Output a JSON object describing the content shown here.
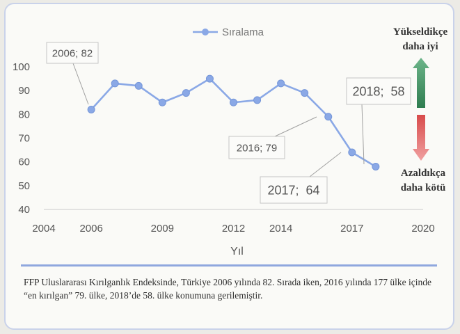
{
  "chart_data": {
    "type": "line",
    "title": "",
    "xlabel": "Yıl",
    "ylabel": "",
    "xlim": [
      2004,
      2020
    ],
    "ylim": [
      40,
      100
    ],
    "x_ticks": [
      "2004",
      "2006",
      "2009",
      "2012",
      "2014",
      "2017",
      "2020"
    ],
    "y_ticks": [
      "100",
      "90",
      "80",
      "70",
      "60",
      "50",
      "40"
    ],
    "grid": false,
    "legend_placement": "top-center",
    "series": [
      {
        "name": "Sıralama",
        "color": "#8aa8e6",
        "points": [
          {
            "x": 2006,
            "y": 82
          },
          {
            "x": 2007,
            "y": 93
          },
          {
            "x": 2008,
            "y": 92
          },
          {
            "x": 2009,
            "y": 85
          },
          {
            "x": 2010,
            "y": 89
          },
          {
            "x": 2011,
            "y": 95
          },
          {
            "x": 2012,
            "y": 85
          },
          {
            "x": 2013,
            "y": 86
          },
          {
            "x": 2014,
            "y": 93
          },
          {
            "x": 2015,
            "y": 89
          },
          {
            "x": 2016,
            "y": 79
          },
          {
            "x": 2017,
            "y": 64
          },
          {
            "x": 2018,
            "y": 58
          }
        ]
      }
    ],
    "annotations": [
      {
        "text": "2006; 82",
        "x": 2006,
        "y": 82
      },
      {
        "text": "2016; 79",
        "x": 2016,
        "y": 79
      },
      {
        "text": "2017;  64",
        "x": 2017,
        "y": 64
      },
      {
        "text": "2018;  58",
        "x": 2018,
        "y": 58
      }
    ]
  },
  "side_legend": {
    "up_label_1": "Yükseldikçe",
    "up_label_2": "daha iyi",
    "down_label_1": "Azaldıkça",
    "down_label_2": "daha kötü",
    "up_color": "#3c8a5c",
    "down_color": "#e06464"
  },
  "caption": "FFP Uluslararası Kırılganlık Endeksinde, Türkiye 2006 yılında 82. Sırada iken, 2016 yılında 177 ülke içinde “en kırılgan” 79. ülke,  2018’de 58. ülke konumuna gerilemiştir."
}
